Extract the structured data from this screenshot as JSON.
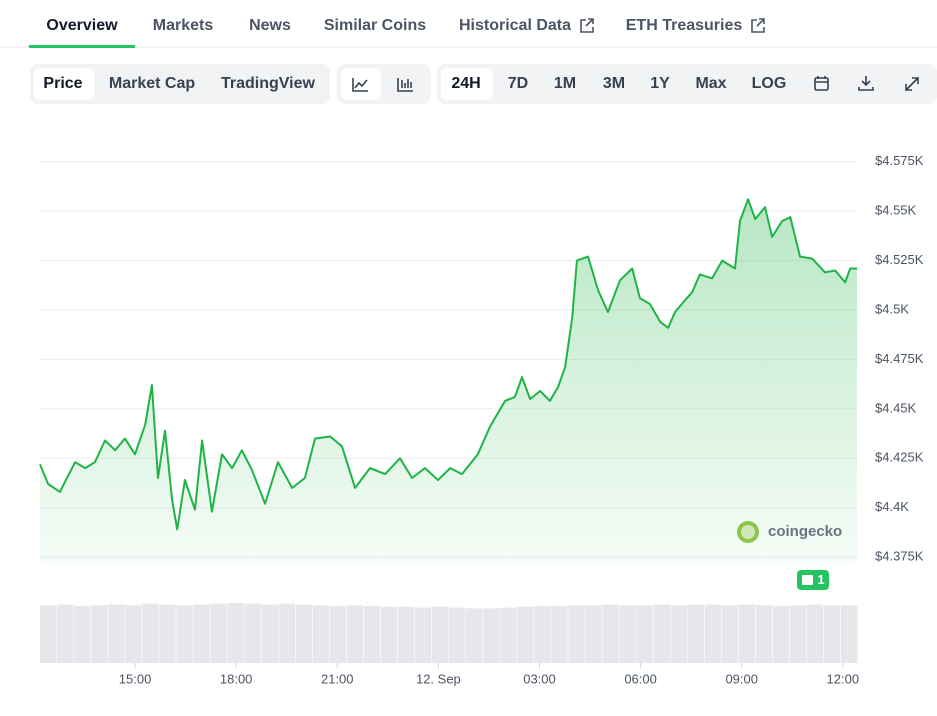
{
  "tabs": [
    "Overview",
    "Markets",
    "News",
    "Similar Coins",
    "Historical Data",
    "ETH Treasuries"
  ],
  "chart_modes": [
    "Price",
    "Market Cap",
    "TradingView"
  ],
  "ranges": [
    "24H",
    "7D",
    "1M",
    "3M",
    "1Y",
    "Max",
    "LOG"
  ],
  "watermark": "coingecko",
  "news_count": 1,
  "chart_data": {
    "type": "line",
    "x": [
      12.18,
      12.42,
      12.77,
      12.92,
      13.22,
      13.52,
      13.81,
      14.11,
      14.41,
      14.7,
      15.0,
      15.3,
      15.5,
      15.68,
      15.89,
      16.1,
      16.25,
      16.48,
      16.78,
      16.99,
      17.28,
      17.58,
      17.88,
      18.17,
      18.47,
      18.86,
      19.24,
      19.66,
      20.04,
      20.34,
      20.79,
      21.14,
      21.53,
      21.97,
      22.42,
      22.86,
      23.22,
      23.6,
      23.99,
      24.35,
      24.7,
      25.17,
      25.53,
      25.98,
      26.27,
      26.48,
      26.72,
      27.02,
      27.31,
      27.55,
      27.76,
      27.97,
      28.11,
      28.44,
      28.74,
      29.03,
      29.39,
      29.75,
      29.98,
      30.28,
      30.58,
      30.82,
      31.02,
      31.32,
      31.53,
      31.76,
      32.12,
      32.42,
      32.8,
      32.95,
      33.19,
      33.4,
      33.69,
      33.9,
      34.2,
      34.44,
      34.73,
      35.09,
      35.47,
      35.77,
      36.07,
      36.22,
      36.42
    ],
    "series": [
      {
        "color": "#1fb446",
        "values": [
          4422,
          4412,
          4408,
          4413,
          4423,
          4420,
          4423,
          4434,
          4429,
          4435,
          4427,
          4442,
          4462,
          4415,
          4439,
          4404,
          4389,
          4414,
          4399,
          4434,
          4398,
          4427,
          4420,
          4429,
          4419,
          4402,
          4423,
          4410,
          4415,
          4435,
          4436,
          4431,
          4410,
          4420,
          4417,
          4425,
          4415,
          4420,
          4414,
          4420,
          4417,
          4427,
          4441,
          4454,
          4456,
          4466,
          4455,
          4459,
          4454,
          4461,
          4471,
          4496,
          4525,
          4527,
          4510,
          4499,
          4515,
          4521,
          4506,
          4503,
          4494,
          4491,
          4499,
          4505,
          4509,
          4518,
          4516,
          4525,
          4521,
          4545,
          4556,
          4546,
          4552,
          4537,
          4545,
          4547,
          4527,
          4526,
          4519,
          4520,
          4514,
          4521,
          4521
        ]
      }
    ],
    "xlim": [
      12.18,
      36.45
    ],
    "ylim": [
      4371,
      4586
    ],
    "xticks": [
      {
        "value": 15,
        "label": "15:00"
      },
      {
        "value": 18,
        "label": "18:00"
      },
      {
        "value": 21,
        "label": "21:00"
      },
      {
        "value": 24,
        "label": "12. Sep"
      },
      {
        "value": 27,
        "label": "03:00"
      },
      {
        "value": 30,
        "label": "06:00"
      },
      {
        "value": 33,
        "label": "09:00"
      },
      {
        "value": 36,
        "label": "12:00"
      }
    ],
    "yticks": [
      {
        "value": 4375,
        "label": "$4.375K"
      },
      {
        "value": 4400,
        "label": "$4.4K"
      },
      {
        "value": 4425,
        "label": "$4.425K"
      },
      {
        "value": 4450,
        "label": "$4.45K"
      },
      {
        "value": 4475,
        "label": "$4.475K"
      },
      {
        "value": 4500,
        "label": "$4.5K"
      },
      {
        "value": 4525,
        "label": "$4.525K"
      },
      {
        "value": 4550,
        "label": "$4.55K"
      },
      {
        "value": 4575,
        "label": "$4.575K"
      }
    ],
    "grid": true,
    "volume": {
      "color": "#e5e7eb",
      "ylim": [
        0,
        100
      ],
      "values": [
        74,
        75,
        73,
        74,
        75,
        74,
        76,
        75,
        74,
        75,
        76,
        77,
        76,
        75,
        76,
        75,
        74,
        73,
        74,
        73,
        72,
        72,
        71,
        72,
        71,
        70,
        70,
        71,
        72,
        73,
        73,
        74,
        74,
        75,
        74,
        74,
        75,
        74,
        75,
        75,
        74,
        75,
        74,
        73,
        74,
        75,
        74,
        74
      ]
    }
  }
}
